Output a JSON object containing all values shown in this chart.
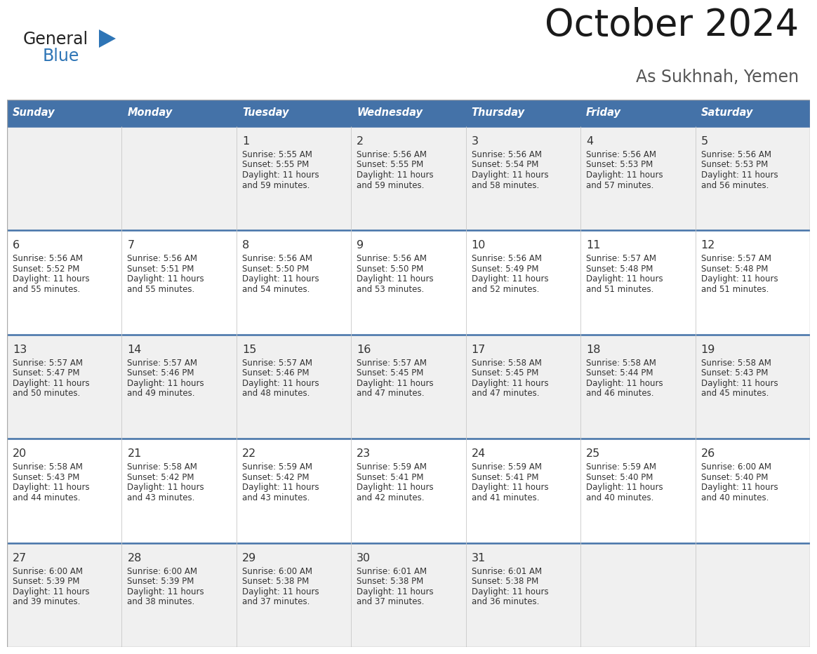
{
  "title": "October 2024",
  "subtitle": "As Sukhnah, Yemen",
  "days_of_week": [
    "Sunday",
    "Monday",
    "Tuesday",
    "Wednesday",
    "Thursday",
    "Friday",
    "Saturday"
  ],
  "header_bg": "#4472A8",
  "header_text_color": "#FFFFFF",
  "row_bg_odd": "#F0F0F0",
  "row_bg_even": "#FFFFFF",
  "cell_text_color": "#333333",
  "divider_color": "#4472A8",
  "calendar_data": [
    [
      null,
      null,
      {
        "day": "1",
        "sunrise": "5:55 AM",
        "sunset": "5:55 PM",
        "dl_hours": "11 hours",
        "dl_mins": "and 59 minutes."
      },
      {
        "day": "2",
        "sunrise": "5:56 AM",
        "sunset": "5:55 PM",
        "dl_hours": "11 hours",
        "dl_mins": "and 59 minutes."
      },
      {
        "day": "3",
        "sunrise": "5:56 AM",
        "sunset": "5:54 PM",
        "dl_hours": "11 hours",
        "dl_mins": "and 58 minutes."
      },
      {
        "day": "4",
        "sunrise": "5:56 AM",
        "sunset": "5:53 PM",
        "dl_hours": "11 hours",
        "dl_mins": "and 57 minutes."
      },
      {
        "day": "5",
        "sunrise": "5:56 AM",
        "sunset": "5:53 PM",
        "dl_hours": "11 hours",
        "dl_mins": "and 56 minutes."
      }
    ],
    [
      {
        "day": "6",
        "sunrise": "5:56 AM",
        "sunset": "5:52 PM",
        "dl_hours": "11 hours",
        "dl_mins": "and 55 minutes."
      },
      {
        "day": "7",
        "sunrise": "5:56 AM",
        "sunset": "5:51 PM",
        "dl_hours": "11 hours",
        "dl_mins": "and 55 minutes."
      },
      {
        "day": "8",
        "sunrise": "5:56 AM",
        "sunset": "5:50 PM",
        "dl_hours": "11 hours",
        "dl_mins": "and 54 minutes."
      },
      {
        "day": "9",
        "sunrise": "5:56 AM",
        "sunset": "5:50 PM",
        "dl_hours": "11 hours",
        "dl_mins": "and 53 minutes."
      },
      {
        "day": "10",
        "sunrise": "5:56 AM",
        "sunset": "5:49 PM",
        "dl_hours": "11 hours",
        "dl_mins": "and 52 minutes."
      },
      {
        "day": "11",
        "sunrise": "5:57 AM",
        "sunset": "5:48 PM",
        "dl_hours": "11 hours",
        "dl_mins": "and 51 minutes."
      },
      {
        "day": "12",
        "sunrise": "5:57 AM",
        "sunset": "5:48 PM",
        "dl_hours": "11 hours",
        "dl_mins": "and 51 minutes."
      }
    ],
    [
      {
        "day": "13",
        "sunrise": "5:57 AM",
        "sunset": "5:47 PM",
        "dl_hours": "11 hours",
        "dl_mins": "and 50 minutes."
      },
      {
        "day": "14",
        "sunrise": "5:57 AM",
        "sunset": "5:46 PM",
        "dl_hours": "11 hours",
        "dl_mins": "and 49 minutes."
      },
      {
        "day": "15",
        "sunrise": "5:57 AM",
        "sunset": "5:46 PM",
        "dl_hours": "11 hours",
        "dl_mins": "and 48 minutes."
      },
      {
        "day": "16",
        "sunrise": "5:57 AM",
        "sunset": "5:45 PM",
        "dl_hours": "11 hours",
        "dl_mins": "and 47 minutes."
      },
      {
        "day": "17",
        "sunrise": "5:58 AM",
        "sunset": "5:45 PM",
        "dl_hours": "11 hours",
        "dl_mins": "and 47 minutes."
      },
      {
        "day": "18",
        "sunrise": "5:58 AM",
        "sunset": "5:44 PM",
        "dl_hours": "11 hours",
        "dl_mins": "and 46 minutes."
      },
      {
        "day": "19",
        "sunrise": "5:58 AM",
        "sunset": "5:43 PM",
        "dl_hours": "11 hours",
        "dl_mins": "and 45 minutes."
      }
    ],
    [
      {
        "day": "20",
        "sunrise": "5:58 AM",
        "sunset": "5:43 PM",
        "dl_hours": "11 hours",
        "dl_mins": "and 44 minutes."
      },
      {
        "day": "21",
        "sunrise": "5:58 AM",
        "sunset": "5:42 PM",
        "dl_hours": "11 hours",
        "dl_mins": "and 43 minutes."
      },
      {
        "day": "22",
        "sunrise": "5:59 AM",
        "sunset": "5:42 PM",
        "dl_hours": "11 hours",
        "dl_mins": "and 43 minutes."
      },
      {
        "day": "23",
        "sunrise": "5:59 AM",
        "sunset": "5:41 PM",
        "dl_hours": "11 hours",
        "dl_mins": "and 42 minutes."
      },
      {
        "day": "24",
        "sunrise": "5:59 AM",
        "sunset": "5:41 PM",
        "dl_hours": "11 hours",
        "dl_mins": "and 41 minutes."
      },
      {
        "day": "25",
        "sunrise": "5:59 AM",
        "sunset": "5:40 PM",
        "dl_hours": "11 hours",
        "dl_mins": "and 40 minutes."
      },
      {
        "day": "26",
        "sunrise": "6:00 AM",
        "sunset": "5:40 PM",
        "dl_hours": "11 hours",
        "dl_mins": "and 40 minutes."
      }
    ],
    [
      {
        "day": "27",
        "sunrise": "6:00 AM",
        "sunset": "5:39 PM",
        "dl_hours": "11 hours",
        "dl_mins": "and 39 minutes."
      },
      {
        "day": "28",
        "sunrise": "6:00 AM",
        "sunset": "5:39 PM",
        "dl_hours": "11 hours",
        "dl_mins": "and 38 minutes."
      },
      {
        "day": "29",
        "sunrise": "6:00 AM",
        "sunset": "5:38 PM",
        "dl_hours": "11 hours",
        "dl_mins": "and 37 minutes."
      },
      {
        "day": "30",
        "sunrise": "6:01 AM",
        "sunset": "5:38 PM",
        "dl_hours": "11 hours",
        "dl_mins": "and 37 minutes."
      },
      {
        "day": "31",
        "sunrise": "6:01 AM",
        "sunset": "5:38 PM",
        "dl_hours": "11 hours",
        "dl_mins": "and 36 minutes."
      },
      null,
      null
    ]
  ],
  "logo_general_color": "#222222",
  "logo_blue_color": "#2E75B6",
  "fig_width": 11.88,
  "fig_height": 9.18,
  "dpi": 100
}
